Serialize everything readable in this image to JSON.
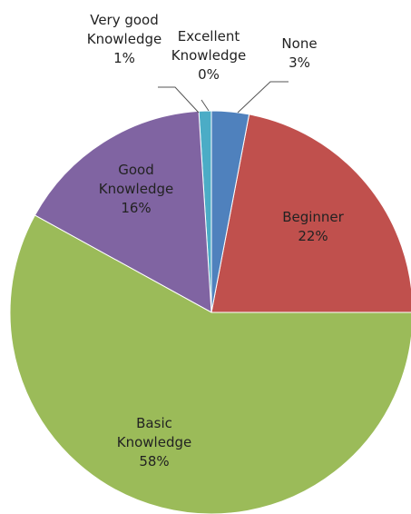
{
  "chart_data": {
    "type": "pie",
    "categories": [
      "None",
      "Beginner",
      "Basic Knowledge",
      "Good Knowledge",
      "Very good Knowledge",
      "Excellent Knowledge"
    ],
    "values": [
      3,
      22,
      58,
      16,
      1,
      0
    ],
    "value_labels": [
      "3%",
      "22%",
      "58%",
      "16%",
      "1%",
      "0%"
    ],
    "colors": [
      "#4f81bd",
      "#c0504d",
      "#9bbb59",
      "#8064a2",
      "#4bacc6",
      "#f79646"
    ]
  }
}
